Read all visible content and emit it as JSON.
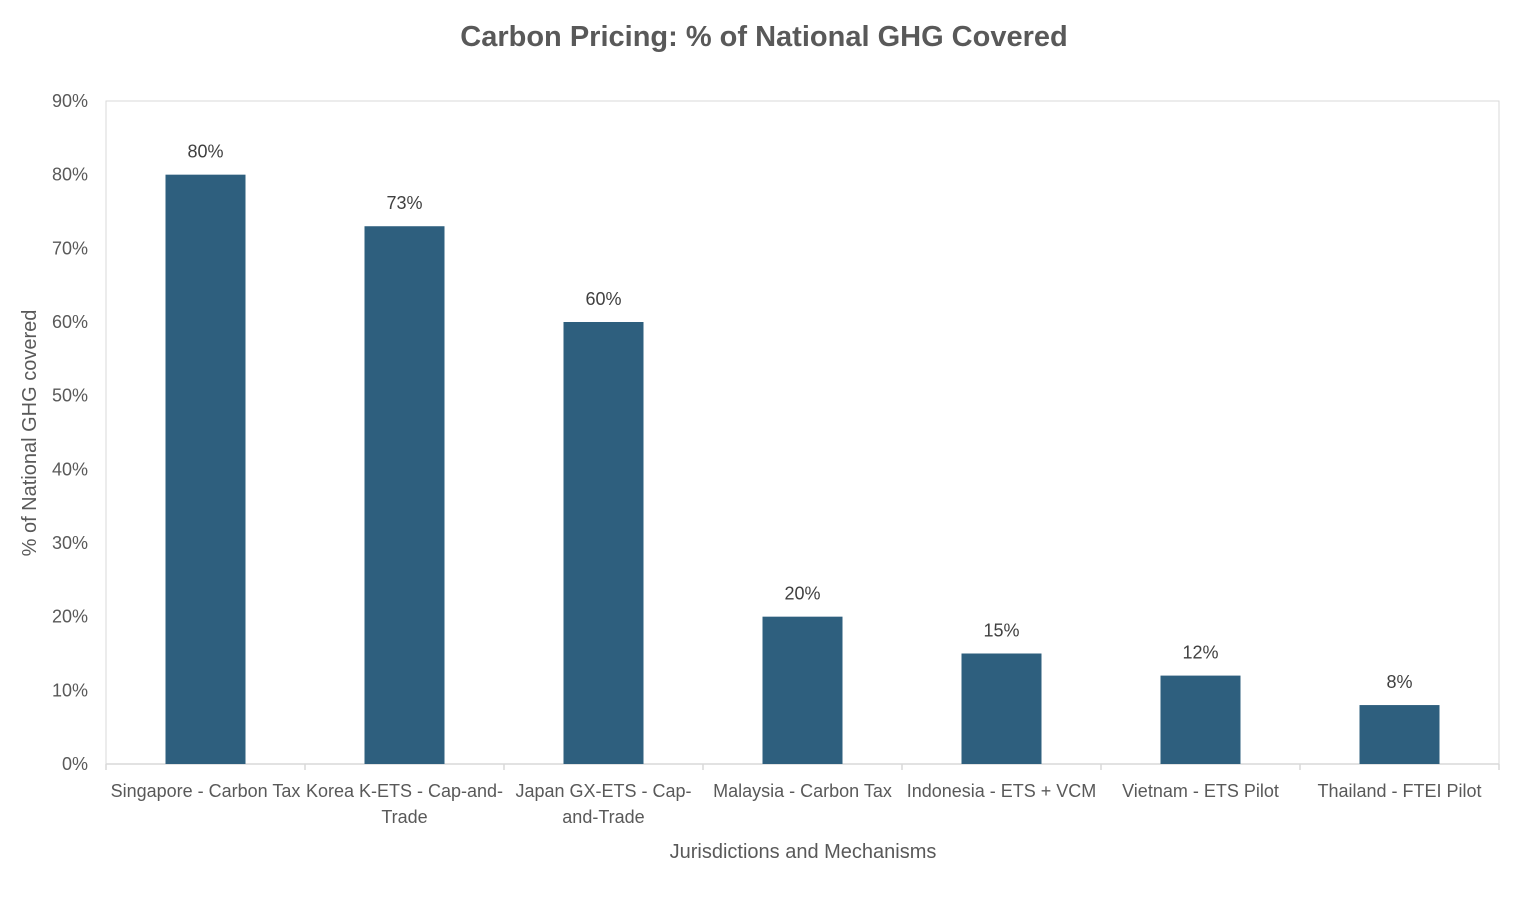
{
  "colors": {
    "bar": "#2e5f7e",
    "axis": "#d9d9d9",
    "text": "#595959"
  },
  "chart_data": {
    "type": "bar",
    "title": "Carbon Pricing: % of National GHG Covered",
    "xlabel": "Jurisdictions and Mechanisms",
    "ylabel": "% of National GHG covered",
    "ylim": [
      0,
      90
    ],
    "yticks": [
      0,
      10,
      20,
      30,
      40,
      50,
      60,
      70,
      80,
      90
    ],
    "ytick_labels": [
      "0%",
      "10%",
      "20%",
      "30%",
      "40%",
      "50%",
      "60%",
      "70%",
      "80%",
      "90%"
    ],
    "categories": [
      [
        "Singapore - Carbon Tax"
      ],
      [
        "Korea K-ETS - Cap-and-",
        "Trade"
      ],
      [
        "Japan GX-ETS - Cap-",
        "and-Trade"
      ],
      [
        "Malaysia - Carbon Tax"
      ],
      [
        "Indonesia - ETS + VCM"
      ],
      [
        "Vietnam - ETS Pilot"
      ],
      [
        "Thailand - FTEI Pilot"
      ]
    ],
    "values": [
      80,
      73,
      60,
      20,
      15,
      12,
      8
    ],
    "data_labels": [
      "80%",
      "73%",
      "60%",
      "20%",
      "15%",
      "12%",
      "8%"
    ],
    "grid": false,
    "legend": "none"
  }
}
